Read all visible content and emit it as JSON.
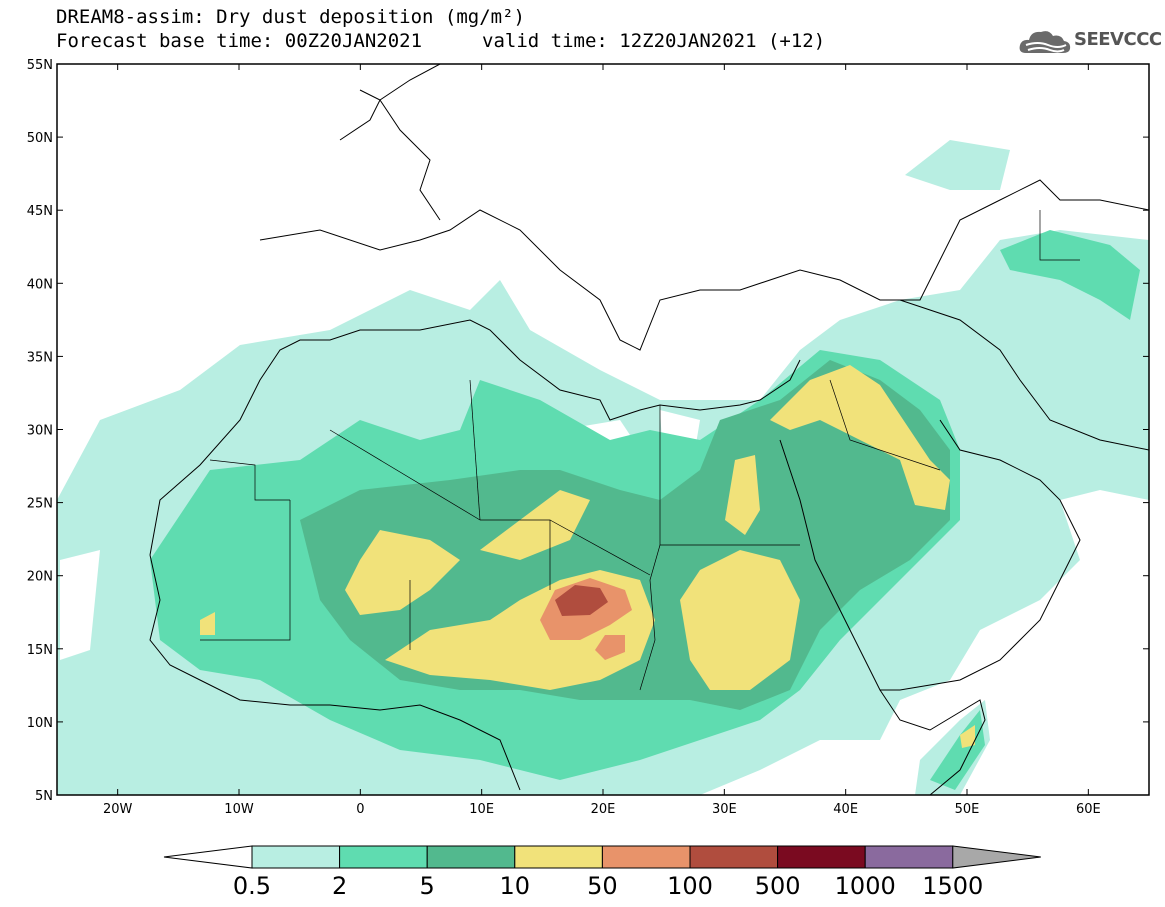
{
  "header": {
    "title_line1": "DREAM8-assim: Dry dust deposition (mg/m²)",
    "title_line2": "Forecast base time: 00Z20JAN2021",
    "valid_time": "valid time: 12Z20JAN2021 (+12)",
    "logo_text": "SEEVCCC",
    "logo_icon": "cloud-icon"
  },
  "map": {
    "projection": "lat-lon",
    "lon_range": [
      -25,
      65
    ],
    "lat_range": [
      5,
      55
    ],
    "lat_labels": [
      "55N",
      "50N",
      "45N",
      "40N",
      "35N",
      "30N",
      "25N",
      "20N",
      "15N",
      "10N",
      "5N"
    ],
    "lon_labels": [
      "20W",
      "10W",
      "0",
      "10E",
      "20E",
      "30E",
      "40E",
      "50E",
      "60E"
    ],
    "colors": {
      "c05": "#b8eee2",
      "c2": "#5fdcb0",
      "c5": "#52b98e",
      "c10": "#f1e27a",
      "c50": "#e8936a",
      "c100": "#b04d3e",
      "c500": "#7a0a20",
      "c1000": "#8a6a9e",
      "c1500": "#a8a8a8"
    }
  },
  "colorbar": {
    "labels": [
      "0.5",
      "2",
      "5",
      "10",
      "50",
      "100",
      "500",
      "1000",
      "1500"
    ],
    "colors": [
      "#b8eee2",
      "#5fdcb0",
      "#52b98e",
      "#f1e27a",
      "#e8936a",
      "#b04d3e",
      "#7a0a20",
      "#8a6a9e"
    ],
    "under_color": "#ffffff",
    "over_color": "#a8a8a8"
  }
}
